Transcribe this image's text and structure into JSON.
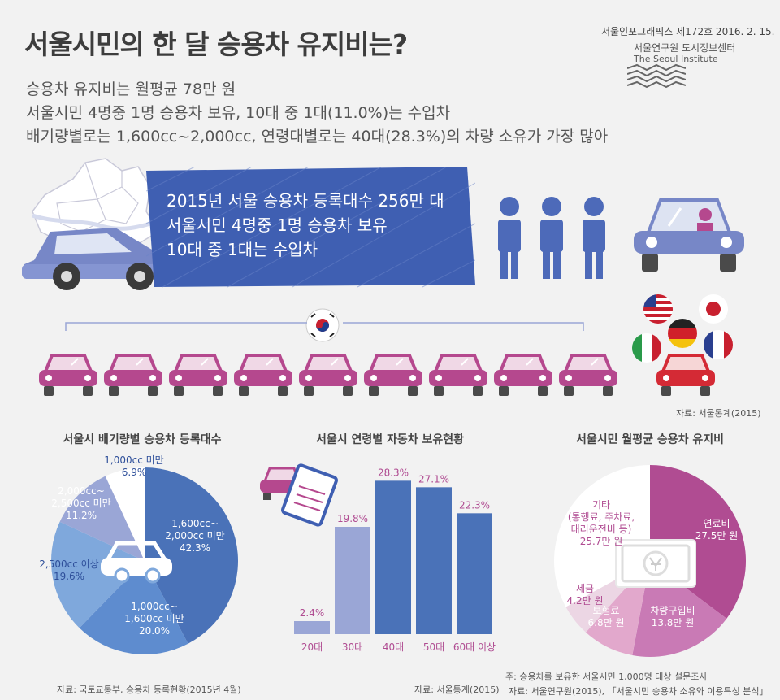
{
  "header": {
    "title": "서울시민의 한 달 승용차 유지비는?",
    "subtitles": [
      "승용차 유지비는 월평균 78만 원",
      "서울시민 4명중 1명 승용차 보유, 10대 중 1대(11.0%)는 수입차",
      "배기량별로는 1,600cc~2,000cc, 연령대별로는 40대(28.3%)의 차량 소유가 가장 많아"
    ],
    "issue": "서울인포그래픽스 제172호 2016. 2. 15.",
    "institute_ko": "서울연구원 도시정보센터",
    "institute_en": "The Seoul Institute"
  },
  "banner": {
    "lines": [
      "2015년 서울 승용차 등록대수 256만 대",
      "서울시민 4명중 1명 승용차 보유",
      "10대 중 1대는 수입차"
    ],
    "source": "자료: 서울통계(2015)"
  },
  "colors": {
    "blue_dark": "#4a72b8",
    "blue_mid": "#7fa4d8",
    "blue_light": "#9aa6d6",
    "purple": "#b04c92",
    "pink": "#e2a8cc",
    "car_magenta": "#b5488e",
    "banner": "#3f5fb2"
  },
  "chart_data": [
    {
      "type": "pie",
      "title": "서울시 배기량별 승용차 등록대수",
      "slices": [
        {
          "label": [
            "1,600cc~",
            "2,000cc 미만"
          ],
          "value": 42.3,
          "text": "42.3%",
          "color": "#4a72b8"
        },
        {
          "label": [
            "1,000cc~",
            "1,600cc 미만"
          ],
          "value": 20.0,
          "text": "20.0%",
          "color": "#5e8ccf"
        },
        {
          "label": [
            "2,500cc 이상"
          ],
          "value": 19.6,
          "text": "19.6%",
          "color": "#7fa8dc"
        },
        {
          "label": [
            "2,000cc~",
            "2,500cc 미만"
          ],
          "value": 11.2,
          "text": "11.2%",
          "color": "#9aa6d6"
        },
        {
          "label": [
            "1,000cc 미만"
          ],
          "value": 6.9,
          "text": "6.9%",
          "color": "#ffffff"
        }
      ],
      "source": "자료: 국토교통부, 승용차 등록현황(2015년 4월)"
    },
    {
      "type": "bar",
      "title": "서울시 연령별 자동차 보유현황",
      "categories": [
        "20대",
        "30대",
        "40대",
        "50대",
        "60대 이상"
      ],
      "values": [
        2.4,
        19.8,
        28.3,
        27.1,
        22.3
      ],
      "labels": [
        "2.4%",
        "19.8%",
        "28.3%",
        "27.1%",
        "22.3%"
      ],
      "colors": [
        "#9aa6d6",
        "#9aa6d6",
        "#4a72b8",
        "#4a72b8",
        "#4a72b8"
      ],
      "ylim": [
        0,
        30
      ],
      "source": "자료: 서울통계(2015)"
    },
    {
      "type": "pie",
      "title": "서울시민 월평균 승용차 유지비",
      "slices": [
        {
          "label": [
            "연료비"
          ],
          "value": 27.5,
          "text": "27.5만 원",
          "color": "#b04c92"
        },
        {
          "label": [
            "차량구입비"
          ],
          "value": 13.8,
          "text": "13.8만 원",
          "color": "#c97ab5"
        },
        {
          "label": [
            "보험료"
          ],
          "value": 6.8,
          "text": "6.8만 원",
          "color": "#e2a8cc"
        },
        {
          "label": [
            "세금"
          ],
          "value": 4.2,
          "text": "4.2만 원",
          "color": "#ecd6e4"
        },
        {
          "label": [
            "기타",
            "(통행료, 주차료,",
            "대리운전비 등)"
          ],
          "value": 25.7,
          "text": "25.7만 원",
          "color": "#ffffff"
        }
      ],
      "notes": [
        "주: 승용차를 보유한 서울시민 1,000명 대상 설문조사",
        "자료: 서울연구원(2015), 「서울시민 승용차 소유와 이용특성 분석」"
      ]
    }
  ]
}
